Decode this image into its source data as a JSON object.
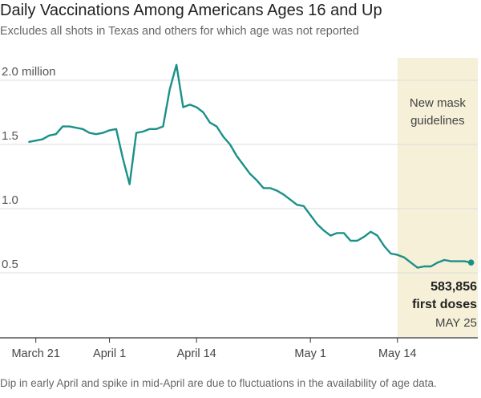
{
  "title": "Daily Vaccinations Among Americans Ages 16 and Up",
  "subtitle": "Excludes all shots in Texas and others for which age was not reported",
  "note": "Dip in early April and spike in mid-April are due to fluctuations in the availability of age data.",
  "colors": {
    "line": "#1a9089",
    "highlight": "#f6f0d8",
    "grid": "#dcdcdc",
    "axis": "#333333",
    "text": "#555555"
  },
  "chart_data": {
    "type": "line",
    "title": "Daily Vaccinations Among Americans Ages 16 and Up",
    "ylabel": "",
    "xlabel": "",
    "ylim": [
      0,
      2.0
    ],
    "xlim": [
      "2021-03-19",
      "2021-05-26"
    ],
    "yticks": [
      {
        "value": 2.0,
        "label": "2.0 million"
      },
      {
        "value": 1.5,
        "label": "1.5"
      },
      {
        "value": 1.0,
        "label": "1.0"
      },
      {
        "value": 0.5,
        "label": "0.5"
      }
    ],
    "xticks": [
      {
        "date": "2021-03-21",
        "label": "March 21"
      },
      {
        "date": "2021-04-01",
        "label": "April 1"
      },
      {
        "date": "2021-04-14",
        "label": "April 14"
      },
      {
        "date": "2021-05-01",
        "label": "May 1"
      },
      {
        "date": "2021-05-14",
        "label": "May 14"
      }
    ],
    "highlight": {
      "start": "2021-05-14",
      "end": "2021-05-26",
      "label_lines": [
        "New mask",
        "guidelines"
      ]
    },
    "callout": {
      "date": "2021-05-25",
      "value_label": "583,856",
      "value_desc": "first doses",
      "date_label": "MAY 25"
    },
    "grid": true,
    "series": [
      {
        "points": [
          [
            "2021-03-20",
            1.52
          ],
          [
            "2021-03-21",
            1.53
          ],
          [
            "2021-03-22",
            1.54
          ],
          [
            "2021-03-23",
            1.57
          ],
          [
            "2021-03-24",
            1.58
          ],
          [
            "2021-03-25",
            1.64
          ],
          [
            "2021-03-26",
            1.64
          ],
          [
            "2021-03-27",
            1.63
          ],
          [
            "2021-03-28",
            1.62
          ],
          [
            "2021-03-29",
            1.59
          ],
          [
            "2021-03-30",
            1.58
          ],
          [
            "2021-03-31",
            1.59
          ],
          [
            "2021-04-01",
            1.61
          ],
          [
            "2021-04-02",
            1.62
          ],
          [
            "2021-04-03",
            1.39
          ],
          [
            "2021-04-04",
            1.19
          ],
          [
            "2021-04-05",
            1.59
          ],
          [
            "2021-04-06",
            1.6
          ],
          [
            "2021-04-07",
            1.62
          ],
          [
            "2021-04-08",
            1.62
          ],
          [
            "2021-04-09",
            1.64
          ],
          [
            "2021-04-10",
            1.93
          ],
          [
            "2021-04-11",
            2.12
          ],
          [
            "2021-04-12",
            1.79
          ],
          [
            "2021-04-13",
            1.81
          ],
          [
            "2021-04-14",
            1.79
          ],
          [
            "2021-04-15",
            1.75
          ],
          [
            "2021-04-16",
            1.67
          ],
          [
            "2021-04-17",
            1.64
          ],
          [
            "2021-04-18",
            1.56
          ],
          [
            "2021-04-19",
            1.5
          ],
          [
            "2021-04-20",
            1.41
          ],
          [
            "2021-04-21",
            1.34
          ],
          [
            "2021-04-22",
            1.27
          ],
          [
            "2021-04-23",
            1.22
          ],
          [
            "2021-04-24",
            1.16
          ],
          [
            "2021-04-25",
            1.16
          ],
          [
            "2021-04-26",
            1.14
          ],
          [
            "2021-04-27",
            1.11
          ],
          [
            "2021-04-28",
            1.07
          ],
          [
            "2021-04-29",
            1.03
          ],
          [
            "2021-04-30",
            1.02
          ],
          [
            "2021-05-01",
            0.95
          ],
          [
            "2021-05-02",
            0.88
          ],
          [
            "2021-05-03",
            0.83
          ],
          [
            "2021-05-04",
            0.79
          ],
          [
            "2021-05-05",
            0.81
          ],
          [
            "2021-05-06",
            0.81
          ],
          [
            "2021-05-07",
            0.75
          ],
          [
            "2021-05-08",
            0.75
          ],
          [
            "2021-05-09",
            0.78
          ],
          [
            "2021-05-10",
            0.82
          ],
          [
            "2021-05-11",
            0.79
          ],
          [
            "2021-05-12",
            0.71
          ],
          [
            "2021-05-13",
            0.65
          ],
          [
            "2021-05-14",
            0.64
          ],
          [
            "2021-05-15",
            0.62
          ],
          [
            "2021-05-16",
            0.58
          ],
          [
            "2021-05-17",
            0.54
          ],
          [
            "2021-05-18",
            0.55
          ],
          [
            "2021-05-19",
            0.55
          ],
          [
            "2021-05-20",
            0.58
          ],
          [
            "2021-05-21",
            0.6
          ],
          [
            "2021-05-22",
            0.59
          ],
          [
            "2021-05-23",
            0.59
          ],
          [
            "2021-05-24",
            0.59
          ],
          [
            "2021-05-25",
            0.58
          ]
        ]
      }
    ]
  }
}
